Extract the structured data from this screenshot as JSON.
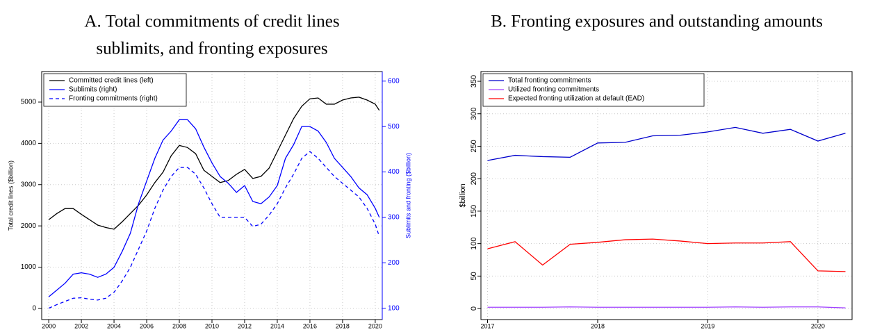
{
  "chart_data": [
    {
      "type": "line",
      "title": [
        "A. Total commitments of credit lines",
        "sublimits, and fronting exposures"
      ],
      "ylabel": "Total credit lines ($billion)",
      "y2label": "Sublimits and fronting ($billion)",
      "y2_color": "#0000ff",
      "x": [
        2000,
        2000.5,
        2001,
        2001.5,
        2002,
        2002.5,
        2003,
        2003.5,
        2004,
        2004.5,
        2005,
        2005.5,
        2006,
        2006.5,
        2007,
        2007.5,
        2008,
        2008.5,
        2009,
        2009.5,
        2010,
        2010.5,
        2011,
        2011.5,
        2012,
        2012.5,
        2013,
        2013.5,
        2014,
        2014.5,
        2015,
        2015.5,
        2016,
        2016.5,
        2017,
        2017.5,
        2018,
        2018.5,
        2019,
        2019.5,
        2020,
        2020.25
      ],
      "xlim": [
        1999.57,
        2020.43
      ],
      "xticks": [
        2000,
        2002,
        2004,
        2006,
        2008,
        2010,
        2012,
        2014,
        2016,
        2018,
        2020
      ],
      "ylim": [
        -270,
        5740
      ],
      "yticks": [
        0,
        1000,
        2000,
        3000,
        4000,
        5000
      ],
      "y2lim": [
        75,
        621
      ],
      "y2ticks": [
        100,
        200,
        300,
        400,
        500,
        600
      ],
      "grid": true,
      "legend": "top-left",
      "series": [
        {
          "name": "Committed credit lines (left)",
          "color": "#000000",
          "linestyle": "solid",
          "values": [
            2150,
            2300,
            2420,
            2420,
            2280,
            2150,
            2020,
            1960,
            1920,
            2100,
            2300,
            2500,
            2750,
            3050,
            3300,
            3700,
            3950,
            3900,
            3750,
            3350,
            3200,
            3050,
            3100,
            3250,
            3370,
            3150,
            3200,
            3400,
            3800,
            4200,
            4600,
            4900,
            5080,
            5100,
            4950,
            4950,
            5050,
            5100,
            5120,
            5050,
            4950,
            4800
          ]
        },
        {
          "name": "Sublimits (right)",
          "color": "#0000ff",
          "linestyle": "solid",
          "axis": "y2",
          "values": [
            125,
            140,
            155,
            175,
            178,
            175,
            168,
            175,
            190,
            225,
            265,
            330,
            380,
            430,
            470,
            490,
            515,
            515,
            495,
            455,
            420,
            390,
            375,
            355,
            370,
            335,
            330,
            345,
            370,
            430,
            460,
            500,
            500,
            490,
            465,
            430,
            410,
            390,
            365,
            350,
            320,
            300
          ]
        },
        {
          "name": "Fronting commitments (right)",
          "color": "#0000ff",
          "linestyle": "dashed",
          "axis": "y2",
          "values": [
            100,
            108,
            115,
            122,
            123,
            120,
            118,
            122,
            135,
            160,
            190,
            230,
            270,
            320,
            360,
            390,
            410,
            410,
            395,
            365,
            330,
            300,
            300,
            300,
            300,
            280,
            285,
            305,
            330,
            365,
            395,
            430,
            445,
            430,
            410,
            390,
            375,
            360,
            345,
            320,
            285,
            258
          ]
        }
      ]
    },
    {
      "type": "line",
      "title": [
        "B. Fronting exposures and outstanding amounts"
      ],
      "ylabel": "$billion",
      "x": [
        2017,
        2017.25,
        2017.5,
        2017.75,
        2018,
        2018.25,
        2018.5,
        2018.75,
        2019,
        2019.25,
        2019.5,
        2019.75,
        2020,
        2020.25
      ],
      "xlim": [
        2016.94,
        2020.31
      ],
      "xticks": [
        2017,
        2018,
        2019,
        2020
      ],
      "ylim": [
        -17,
        365
      ],
      "yticks": [
        0,
        50,
        100,
        150,
        200,
        250,
        300,
        350
      ],
      "grid": true,
      "legend": "top-left",
      "series": [
        {
          "name": "Total fronting commitments",
          "color": "#0000cc",
          "linestyle": "solid",
          "values": [
            228,
            236,
            234,
            233,
            255,
            256,
            266,
            267,
            272,
            279,
            270,
            276,
            258,
            270
          ]
        },
        {
          "name": "Utilized fronting commitments",
          "color": "#a040ff",
          "linestyle": "solid",
          "values": [
            2,
            2,
            2,
            2.5,
            2,
            2,
            2,
            2,
            2,
            2.5,
            2,
            2.5,
            2.5,
            1
          ]
        },
        {
          "name": "Expected fronting utilization at default (EAD)",
          "color": "#ff0000",
          "linestyle": "solid",
          "values": [
            92,
            103,
            67,
            99,
            102,
            106,
            107,
            104,
            100,
            101,
            101,
            103,
            58,
            57
          ]
        }
      ]
    }
  ]
}
